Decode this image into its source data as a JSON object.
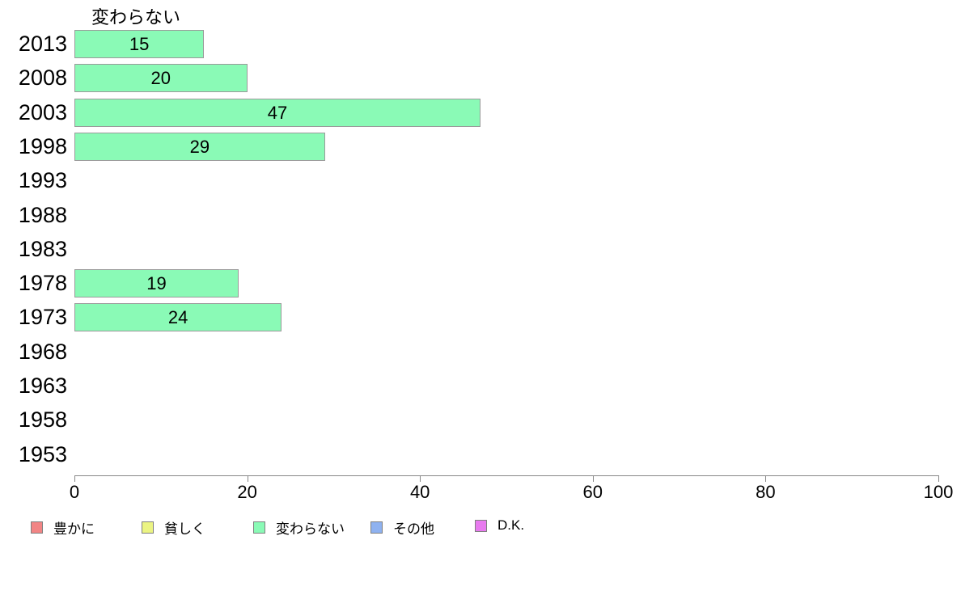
{
  "title": "変わらない",
  "chart_data": {
    "type": "bar",
    "orientation": "horizontal",
    "title": "変わらない",
    "categories": [
      "2013",
      "2008",
      "2003",
      "1998",
      "1993",
      "1988",
      "1983",
      "1978",
      "1973",
      "1968",
      "1963",
      "1958",
      "1953"
    ],
    "values": [
      15,
      20,
      47,
      29,
      0,
      0,
      0,
      19,
      24,
      0,
      0,
      0,
      0
    ],
    "xlabel": "",
    "ylabel": "",
    "xlim": [
      0,
      100
    ],
    "x_ticks": [
      0,
      20,
      40,
      60,
      80,
      100
    ],
    "grid": false,
    "bar_color": "#8afab6",
    "bar_border_color": "#9a9a9a",
    "legend_position": "bottom"
  },
  "legend": {
    "items": [
      {
        "label": "豊かに",
        "color": "#f28585"
      },
      {
        "label": "貧しく",
        "color": "#ebf483"
      },
      {
        "label": "変わらない",
        "color": "#8afab6"
      },
      {
        "label": "その他",
        "color": "#8fb2f0"
      },
      {
        "label": "D.K.",
        "color": "#e87aef"
      }
    ]
  }
}
